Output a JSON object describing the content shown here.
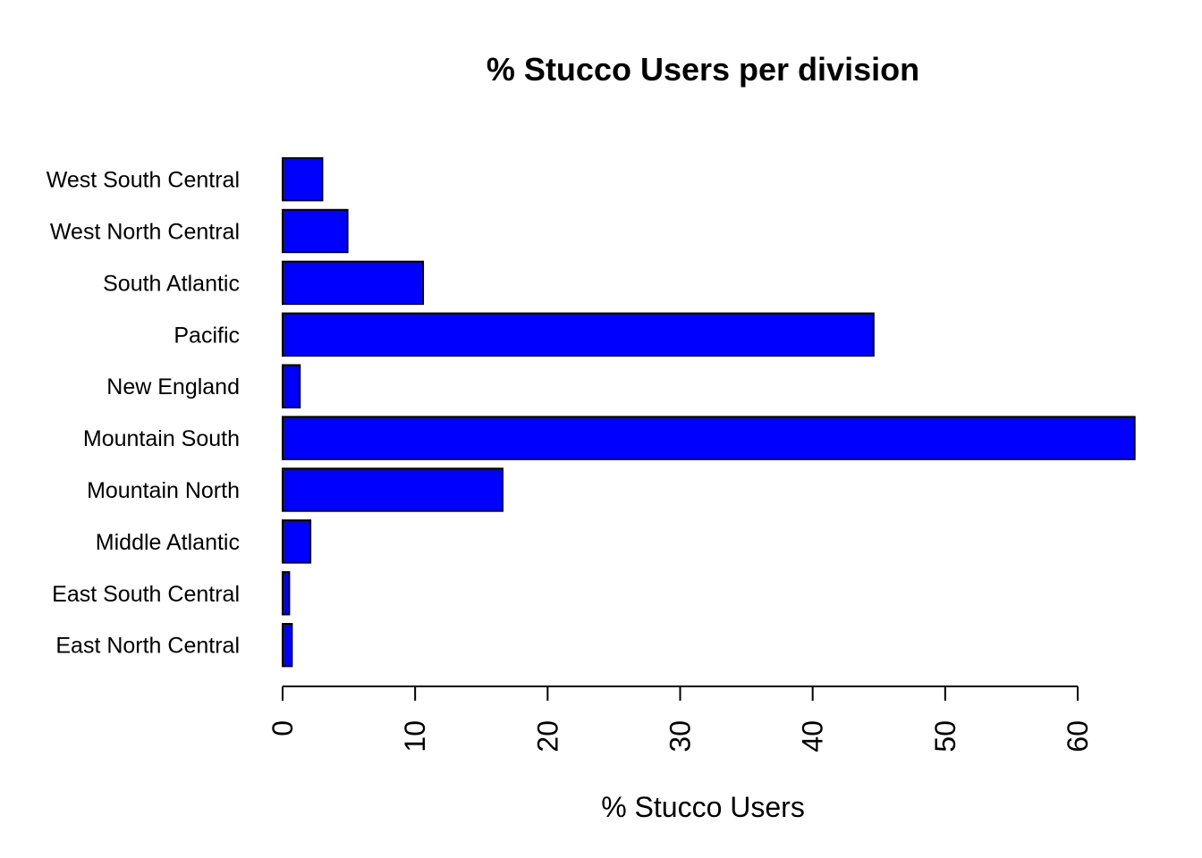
{
  "chart_data": {
    "type": "bar",
    "orientation": "horizontal",
    "title": "% Stucco Users per division",
    "xlabel": "% Stucco Users",
    "ylabel": "",
    "categories": [
      "East North Central",
      "East South Central",
      "Middle Atlantic",
      "Mountain North",
      "Mountain South",
      "New England",
      "Pacific",
      "South Atlantic",
      "West North Central",
      "West South Central"
    ],
    "values": [
      0.7,
      0.5,
      2.1,
      16.6,
      64.3,
      1.3,
      44.6,
      10.6,
      4.9,
      3.0
    ],
    "xlim": [
      0,
      64.3
    ],
    "ticks": [
      0,
      10,
      20,
      30,
      40,
      50,
      60
    ],
    "tick_labels": [
      "0",
      "10",
      "20",
      "30",
      "40",
      "50",
      "60"
    ],
    "bar_color": "#0000ff",
    "border_color": "#000000",
    "grid": false
  }
}
